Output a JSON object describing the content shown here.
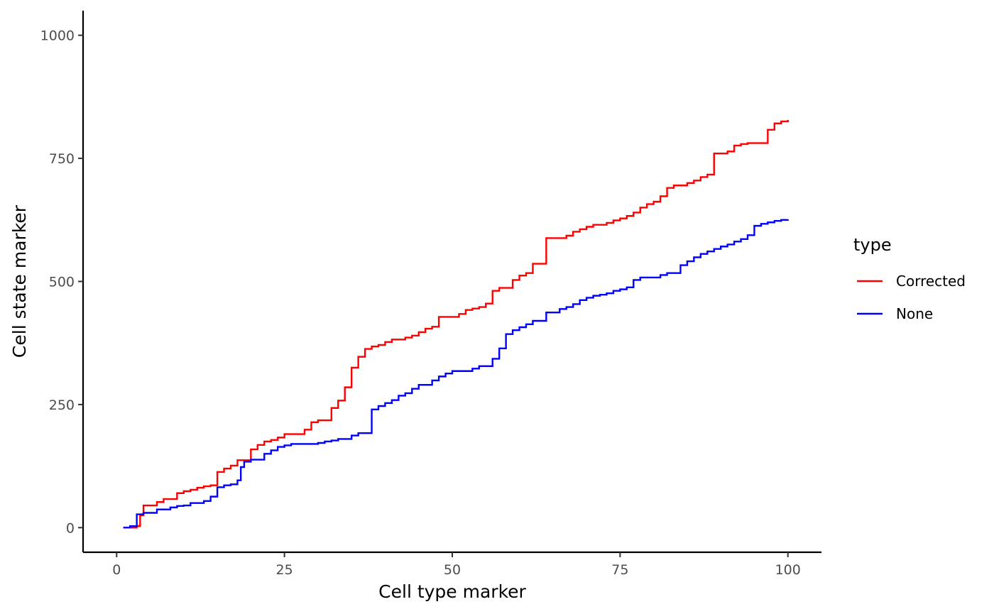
{
  "chart_data": {
    "type": "line",
    "step": true,
    "title": "",
    "xlabel": "Cell type marker",
    "ylabel": "Cell state marker",
    "xlim": [
      -5,
      105
    ],
    "ylim": [
      -50,
      1050
    ],
    "x_ticks": [
      0,
      25,
      50,
      75,
      100
    ],
    "y_ticks": [
      0,
      250,
      500,
      750,
      1000
    ],
    "grid": false,
    "legend": {
      "title": "type",
      "position": "right"
    },
    "series": [
      {
        "name": "Corrected",
        "color": "#ff0000",
        "points": [
          [
            1,
            0
          ],
          [
            3,
            3
          ],
          [
            3.5,
            25
          ],
          [
            4,
            45
          ],
          [
            6,
            52
          ],
          [
            7,
            58
          ],
          [
            9,
            70
          ],
          [
            10,
            74
          ],
          [
            11,
            77
          ],
          [
            12,
            81
          ],
          [
            13,
            84
          ],
          [
            14,
            86
          ],
          [
            15,
            113
          ],
          [
            16,
            120
          ],
          [
            17,
            126
          ],
          [
            18,
            137
          ],
          [
            20,
            159
          ],
          [
            21,
            168
          ],
          [
            22,
            175
          ],
          [
            23,
            178
          ],
          [
            24,
            183
          ],
          [
            25,
            190
          ],
          [
            28,
            199
          ],
          [
            29,
            214
          ],
          [
            30,
            218
          ],
          [
            32,
            243
          ],
          [
            33,
            258
          ],
          [
            34,
            285
          ],
          [
            35,
            325
          ],
          [
            36,
            347
          ],
          [
            37,
            363
          ],
          [
            38,
            368
          ],
          [
            39,
            371
          ],
          [
            40,
            377
          ],
          [
            41,
            382
          ],
          [
            43,
            386
          ],
          [
            44,
            390
          ],
          [
            45,
            397
          ],
          [
            46,
            404
          ],
          [
            47,
            408
          ],
          [
            48,
            428
          ],
          [
            51,
            434
          ],
          [
            52,
            442
          ],
          [
            53,
            445
          ],
          [
            54,
            448
          ],
          [
            55,
            455
          ],
          [
            56,
            481
          ],
          [
            57,
            487
          ],
          [
            59,
            503
          ],
          [
            60,
            512
          ],
          [
            61,
            517
          ],
          [
            62,
            536
          ],
          [
            64,
            588
          ],
          [
            67,
            593
          ],
          [
            68,
            601
          ],
          [
            69,
            606
          ],
          [
            70,
            611
          ],
          [
            71,
            615
          ],
          [
            73,
            619
          ],
          [
            74,
            624
          ],
          [
            75,
            628
          ],
          [
            76,
            633
          ],
          [
            77,
            640
          ],
          [
            78,
            650
          ],
          [
            79,
            657
          ],
          [
            80,
            662
          ],
          [
            81,
            673
          ],
          [
            82,
            690
          ],
          [
            83,
            695
          ],
          [
            85,
            700
          ],
          [
            86,
            705
          ],
          [
            87,
            712
          ],
          [
            88,
            717
          ],
          [
            89,
            760
          ],
          [
            91,
            764
          ],
          [
            92,
            776
          ],
          [
            93,
            779
          ],
          [
            94,
            781
          ],
          [
            97,
            808
          ],
          [
            98,
            821
          ],
          [
            99,
            825
          ],
          [
            100,
            828
          ]
        ]
      },
      {
        "name": "None",
        "color": "#0000ff",
        "points": [
          [
            1,
            0
          ],
          [
            2,
            3
          ],
          [
            3,
            27
          ],
          [
            4,
            30
          ],
          [
            6,
            37
          ],
          [
            8,
            41
          ],
          [
            9,
            44
          ],
          [
            10,
            45
          ],
          [
            11,
            50
          ],
          [
            13,
            54
          ],
          [
            14,
            63
          ],
          [
            15,
            82
          ],
          [
            16,
            86
          ],
          [
            17,
            88
          ],
          [
            18,
            96
          ],
          [
            18.5,
            123
          ],
          [
            19,
            134
          ],
          [
            20,
            138
          ],
          [
            22,
            150
          ],
          [
            23,
            157
          ],
          [
            24,
            164
          ],
          [
            25,
            167
          ],
          [
            26,
            170
          ],
          [
            30,
            172
          ],
          [
            31,
            175
          ],
          [
            32,
            177
          ],
          [
            33,
            180
          ],
          [
            35,
            187
          ],
          [
            36,
            192
          ],
          [
            38,
            240
          ],
          [
            39,
            247
          ],
          [
            40,
            253
          ],
          [
            41,
            259
          ],
          [
            42,
            268
          ],
          [
            43,
            273
          ],
          [
            44,
            282
          ],
          [
            45,
            290
          ],
          [
            47,
            299
          ],
          [
            48,
            307
          ],
          [
            49,
            313
          ],
          [
            50,
            318
          ],
          [
            53,
            323
          ],
          [
            54,
            328
          ],
          [
            56,
            343
          ],
          [
            57,
            364
          ],
          [
            58,
            393
          ],
          [
            59,
            401
          ],
          [
            60,
            407
          ],
          [
            61,
            413
          ],
          [
            62,
            420
          ],
          [
            64,
            437
          ],
          [
            66,
            444
          ],
          [
            67,
            448
          ],
          [
            68,
            454
          ],
          [
            69,
            462
          ],
          [
            70,
            467
          ],
          [
            71,
            471
          ],
          [
            72,
            473
          ],
          [
            73,
            476
          ],
          [
            74,
            481
          ],
          [
            75,
            484
          ],
          [
            76,
            488
          ],
          [
            77,
            503
          ],
          [
            78,
            508
          ],
          [
            81,
            513
          ],
          [
            82,
            517
          ],
          [
            84,
            533
          ],
          [
            85,
            541
          ],
          [
            86,
            549
          ],
          [
            87,
            556
          ],
          [
            88,
            561
          ],
          [
            89,
            566
          ],
          [
            90,
            571
          ],
          [
            91,
            575
          ],
          [
            92,
            581
          ],
          [
            93,
            586
          ],
          [
            94,
            594
          ],
          [
            95,
            613
          ],
          [
            96,
            617
          ],
          [
            97,
            620
          ],
          [
            98,
            623
          ],
          [
            99,
            625
          ],
          [
            100,
            626
          ]
        ]
      }
    ]
  }
}
